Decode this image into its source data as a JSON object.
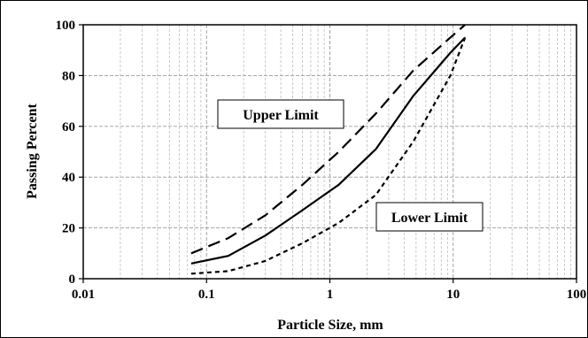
{
  "chart_data": {
    "type": "line",
    "x_scale": "log",
    "xlabel": "Particle Size, mm",
    "ylabel": "Passing Percent",
    "xlim": [
      0.01,
      100
    ],
    "ylim": [
      0,
      100
    ],
    "x_ticks": [
      "0.01",
      "0.1",
      "1",
      "10",
      "100"
    ],
    "y_ticks": [
      "0",
      "20",
      "40",
      "60",
      "80",
      "100"
    ],
    "grid": true,
    "legend": "none",
    "series": [
      {
        "name": "Upper Limit",
        "style": "long-dash",
        "color": "#000000",
        "x": [
          0.075,
          0.15,
          0.3,
          0.6,
          1.18,
          2.36,
          4.75,
          9.5,
          12.5
        ],
        "y": [
          10,
          16,
          25,
          37,
          50,
          65,
          82,
          95,
          100
        ]
      },
      {
        "name": "",
        "style": "solid",
        "color": "#000000",
        "x": [
          0.075,
          0.15,
          0.3,
          0.6,
          1.18,
          2.36,
          4.75,
          9.5,
          12.5
        ],
        "y": [
          6,
          9,
          17,
          27,
          37,
          51,
          72,
          89,
          95
        ]
      },
      {
        "name": "Lower Limit",
        "style": "short-dash",
        "color": "#000000",
        "x": [
          0.075,
          0.15,
          0.3,
          0.6,
          1.18,
          2.36,
          4.75,
          9.5,
          12.5
        ],
        "y": [
          2,
          3,
          7,
          14,
          22,
          33,
          54,
          80,
          95
        ]
      }
    ],
    "annotations": [
      {
        "text": "Upper Limit"
      },
      {
        "text": "Lower Limit"
      }
    ]
  }
}
